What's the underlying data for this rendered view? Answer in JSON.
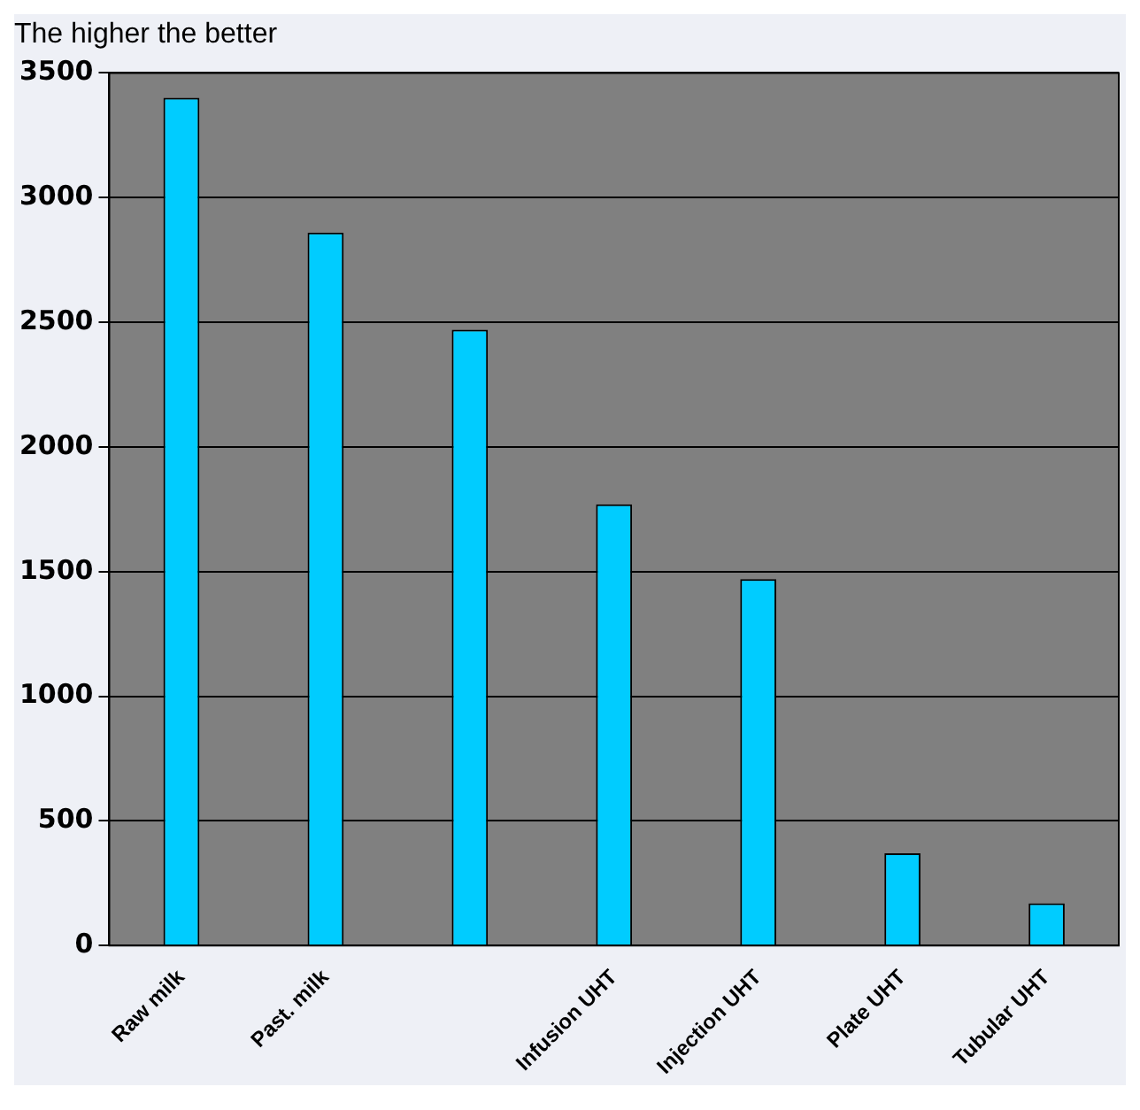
{
  "chart_data": {
    "type": "bar",
    "title": "The higher the better",
    "categories": [
      "Raw milk",
      "Past. milk",
      null,
      "Infusion UHT",
      "Injection UHT",
      "Plate UHT",
      "Tubular UHT"
    ],
    "values": [
      3400,
      2860,
      2470,
      1770,
      1470,
      370,
      170
    ],
    "color": "#00ccff",
    "ylim": [
      0,
      3500
    ],
    "yticks": [
      0,
      500,
      1000,
      1500,
      2000,
      2500,
      3000,
      3500
    ],
    "grid": "y"
  }
}
